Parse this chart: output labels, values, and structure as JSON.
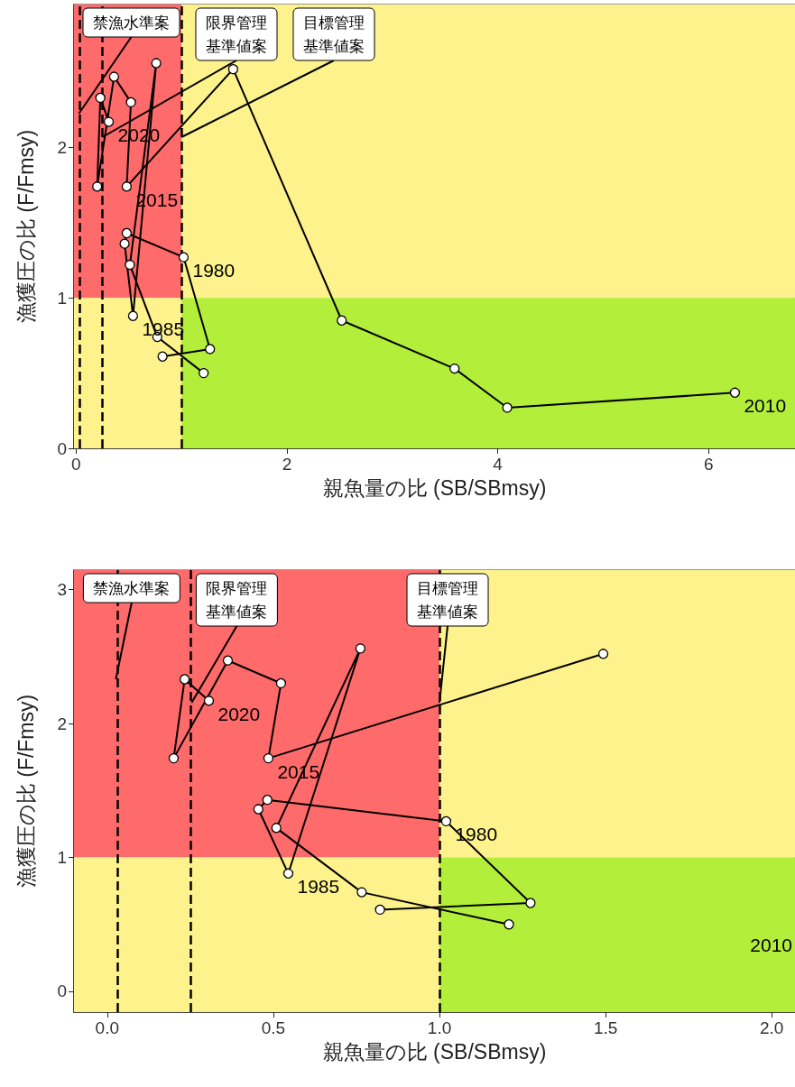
{
  "chart_data": [
    {
      "type": "line",
      "xlabel": "親魚量の比 (SB/SBmsy)",
      "ylabel": "漁獲圧の比 (F/Fmsy)",
      "marker": "circle",
      "xlim": [
        -0.02,
        6.82
      ],
      "ylim": [
        0,
        2.95
      ],
      "xticks": [
        0,
        2,
        4,
        6
      ],
      "yticks": [
        0,
        1,
        2
      ],
      "bands": [
        {
          "axis": "x",
          "from": -0.02,
          "to": 1,
          "color": "#ff6a6a"
        },
        {
          "axis": "y",
          "from": 1,
          "to": 2.95,
          "color": "#fdf28c"
        },
        {
          "axis": "y",
          "from": 0,
          "to": 1,
          "color": "#fdf28c"
        },
        {
          "axis": "x",
          "from": 1,
          "to": 6.82,
          "color": "#b3ee3a"
        }
      ],
      "series": [
        {
          "color": "#000000",
          "x": [
            0.82,
            1.27,
            1.02,
            0.48,
            0.46,
            0.54,
            0.76,
            0.51,
            0.77,
            1.21
          ],
          "values": [
            0.61,
            0.66,
            1.27,
            1.43,
            1.36,
            0.88,
            2.56,
            1.22,
            0.74,
            0.5
          ]
        },
        {
          "color": "#000000",
          "x": [
            6.25,
            4.09,
            3.59,
            2.52,
            1.49,
            0.48,
            0.52,
            0.36,
            0.2,
            0.23,
            0.31
          ],
          "values": [
            0.37,
            0.27,
            0.53,
            0.85,
            2.52,
            1.74,
            2.3,
            2.47,
            1.74,
            2.33,
            2.17
          ]
        }
      ],
      "ref_lines": [
        {
          "axis": "x",
          "value": 0.026,
          "label": "禁漁水準案",
          "line_style": "dashed",
          "color": "#000000"
        },
        {
          "axis": "x",
          "value": 0.25,
          "label": "限界管理基準値案",
          "line_style": "dashed",
          "color": "#000000"
        },
        {
          "axis": "x",
          "value": 1.0,
          "label": "目標管理基準値案",
          "line_style": "dashed",
          "color": "#000000"
        }
      ],
      "annotations": [
        {
          "text": "1980",
          "x": 1.02,
          "y": 1.27
        },
        {
          "text": "1985",
          "x": 0.54,
          "y": 0.88
        },
        {
          "text": "2010",
          "x": 6.25,
          "y": 0.37
        },
        {
          "text": "2015",
          "x": 0.48,
          "y": 1.74
        },
        {
          "text": "2020",
          "x": 0.31,
          "y": 2.17
        }
      ]
    },
    {
      "type": "line",
      "xlabel": "親魚量の比 (SB/SBmsy)",
      "ylabel": "漁獲圧の比 (F/Fmsy)",
      "marker": "circle",
      "xlim": [
        -0.1,
        2.07
      ],
      "ylim": [
        -0.155,
        3.145
      ],
      "xticks": [
        {
          "value": 0,
          "label": "0.0"
        },
        {
          "value": 0.5,
          "label": "0.5"
        },
        {
          "value": 1,
          "label": "1.0"
        },
        {
          "value": 1.5,
          "label": "1.5"
        },
        {
          "value": 2,
          "label": "2.0"
        }
      ],
      "yticks": [
        0,
        1,
        2,
        3
      ],
      "bands": [
        {
          "axis": "x",
          "from": -0.1,
          "to": 1,
          "color": "#ff6a6a"
        },
        {
          "axis": "y",
          "from": 1,
          "to": 3.145,
          "color": "#fdf28c"
        },
        {
          "axis": "y",
          "from": -0.155,
          "to": 1,
          "color": "#fdf28c"
        },
        {
          "axis": "x",
          "from": 1,
          "to": 2.07,
          "color": "#b3ee3a"
        }
      ],
      "series": [
        {
          "color": "#000000",
          "x": [
            0.821,
            1.274,
            1.02,
            0.482,
            0.455,
            0.545,
            0.762,
            0.509,
            0.766,
            1.209
          ],
          "values": [
            0.61,
            0.66,
            1.27,
            1.43,
            1.36,
            0.88,
            2.56,
            1.22,
            0.74,
            0.5
          ]
        },
        {
          "color": "#000000",
          "x": [
            null,
            null,
            null,
            null,
            1.493,
            0.485,
            0.523,
            0.363,
            0.2,
            0.233,
            0.306
          ],
          "values": [
            null,
            null,
            null,
            null,
            2.52,
            1.74,
            2.3,
            2.47,
            1.74,
            2.33,
            2.17
          ]
        }
      ],
      "ref_lines": [
        {
          "axis": "x",
          "value": 0.026,
          "label": "禁漁水準案",
          "line_style": "dashed",
          "color": "#000000"
        },
        {
          "axis": "x",
          "value": 0.254,
          "label": "限界管理基準値案",
          "line_style": "dashed",
          "color": "#000000"
        },
        {
          "axis": "x",
          "value": 1.0,
          "label": "目標管理基準値案",
          "line_style": "dashed",
          "color": "#000000"
        }
      ],
      "annotations": [
        {
          "text": "1980",
          "x": 1.02,
          "y": 1.27
        },
        {
          "text": "1985",
          "x": 0.545,
          "y": 0.88
        },
        "2010",
        {
          "text": "2015",
          "x": 0.485,
          "y": 1.74
        },
        {
          "text": "2020",
          "x": 0.306,
          "y": 2.17
        }
      ]
    }
  ]
}
